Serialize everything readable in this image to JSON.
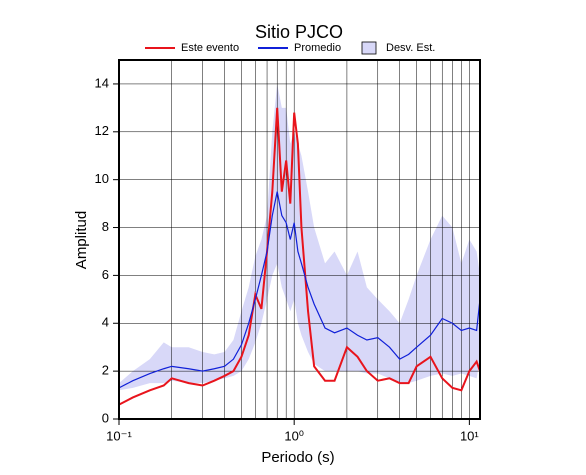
{
  "chart_data": {
    "type": "line",
    "title": "Sitio PJCO",
    "x_label": "Periodo (s)",
    "y_label": "Amplitud",
    "log_x": true,
    "grid": true,
    "legend": "top",
    "xlim": [
      0.1,
      11.5
    ],
    "ylim": [
      0,
      15
    ],
    "xticks": [
      {
        "value": 0.1,
        "label": "10⁻¹"
      },
      {
        "value": 1,
        "label": "10⁰"
      },
      {
        "value": 10,
        "label": "10¹"
      }
    ],
    "yticks": [
      0,
      2,
      4,
      6,
      8,
      10,
      12,
      14
    ],
    "x": [
      0.1,
      0.12,
      0.15,
      0.18,
      0.2,
      0.25,
      0.3,
      0.35,
      0.4,
      0.45,
      0.5,
      0.55,
      0.6,
      0.65,
      0.7,
      0.75,
      0.8,
      0.85,
      0.9,
      0.95,
      1.0,
      1.05,
      1.1,
      1.2,
      1.3,
      1.5,
      1.7,
      2.0,
      2.3,
      2.6,
      3.0,
      3.5,
      4.0,
      4.5,
      5.0,
      6.0,
      7.0,
      8.0,
      9.0,
      10.0,
      11.0,
      11.5
    ],
    "series": [
      {
        "name": "Este evento",
        "color": "#e8141c",
        "values": [
          0.6,
          0.9,
          1.2,
          1.4,
          1.7,
          1.5,
          1.4,
          1.6,
          1.8,
          2.0,
          2.6,
          3.5,
          5.2,
          4.6,
          7.0,
          9.5,
          13.0,
          9.5,
          10.8,
          9.0,
          12.8,
          11.5,
          8.0,
          4.5,
          2.2,
          1.6,
          1.6,
          3.0,
          2.6,
          2.0,
          1.6,
          1.7,
          1.5,
          1.5,
          2.2,
          2.6,
          1.7,
          1.3,
          1.2,
          2.0,
          2.4,
          2.0
        ]
      },
      {
        "name": "Promedio",
        "color": "#1020d8",
        "values": [
          1.3,
          1.6,
          1.9,
          2.1,
          2.2,
          2.1,
          2.0,
          2.1,
          2.2,
          2.5,
          3.1,
          4.0,
          5.0,
          6.0,
          7.0,
          8.5,
          9.5,
          8.5,
          8.2,
          7.5,
          8.2,
          7.0,
          6.5,
          5.5,
          4.8,
          3.8,
          3.6,
          3.8,
          3.5,
          3.3,
          3.4,
          3.0,
          2.5,
          2.7,
          3.0,
          3.5,
          4.2,
          4.0,
          3.7,
          3.8,
          3.7,
          5.0
        ]
      },
      {
        "name": "Desv. Est.",
        "color": "#d8d8f8",
        "type": "band",
        "high": [
          1.5,
          2.0,
          2.5,
          3.2,
          3.0,
          3.0,
          2.8,
          2.7,
          2.8,
          3.3,
          4.5,
          5.5,
          6.8,
          7.5,
          8.5,
          12.0,
          14.0,
          13.0,
          13.0,
          11.5,
          12.0,
          11.5,
          11.0,
          9.5,
          8.0,
          6.5,
          7.0,
          6.0,
          7.0,
          5.5,
          5.0,
          4.5,
          4.0,
          5.0,
          6.0,
          7.5,
          8.5,
          8.0,
          6.5,
          7.5,
          7.0,
          6.0
        ],
        "low": [
          1.2,
          1.3,
          1.5,
          1.5,
          1.6,
          1.5,
          1.5,
          1.6,
          1.7,
          1.8,
          2.0,
          2.5,
          3.2,
          4.0,
          5.0,
          6.0,
          6.5,
          5.5,
          5.0,
          4.5,
          5.0,
          4.0,
          3.5,
          2.8,
          2.3,
          2.0,
          2.0,
          2.0,
          2.0,
          1.9,
          1.9,
          1.7,
          1.5,
          1.5,
          1.6,
          1.8,
          1.9,
          1.8,
          1.9,
          1.8,
          1.7,
          2.5
        ]
      }
    ]
  }
}
